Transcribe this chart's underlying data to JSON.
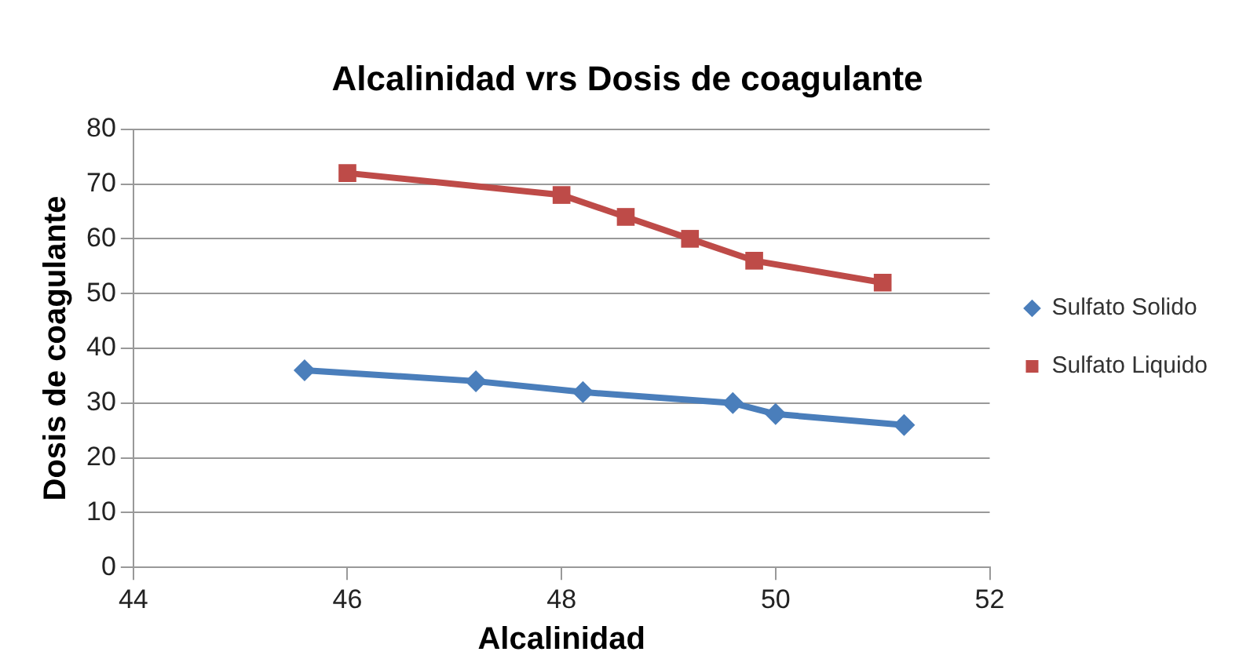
{
  "chart_data": {
    "type": "line",
    "title": "Alcalinidad vrs Dosis de coagulante",
    "xlabel": "Alcalinidad",
    "ylabel": "Dosis de coagulante",
    "series": [
      {
        "name": "Sulfato Solido",
        "color": "#4a7ebb",
        "marker": "diamond",
        "x": [
          45.6,
          47.2,
          48.2,
          49.6,
          50.0,
          51.2
        ],
        "values": [
          36,
          34,
          32,
          30,
          28,
          26
        ]
      },
      {
        "name": "Sulfato Liquido",
        "color": "#be4b48",
        "marker": "square",
        "x": [
          46.0,
          48.0,
          48.6,
          49.2,
          49.8,
          51.0
        ],
        "values": [
          72,
          68,
          64,
          60,
          56,
          52
        ]
      }
    ],
    "xlim": [
      44,
      52
    ],
    "xticks": [
      44,
      46,
      48,
      50,
      52
    ],
    "ylim": [
      0,
      80
    ],
    "yticks": [
      0,
      10,
      20,
      30,
      40,
      50,
      60,
      70,
      80
    ],
    "grid": "y",
    "legend": "right",
    "line_style": "solid"
  }
}
